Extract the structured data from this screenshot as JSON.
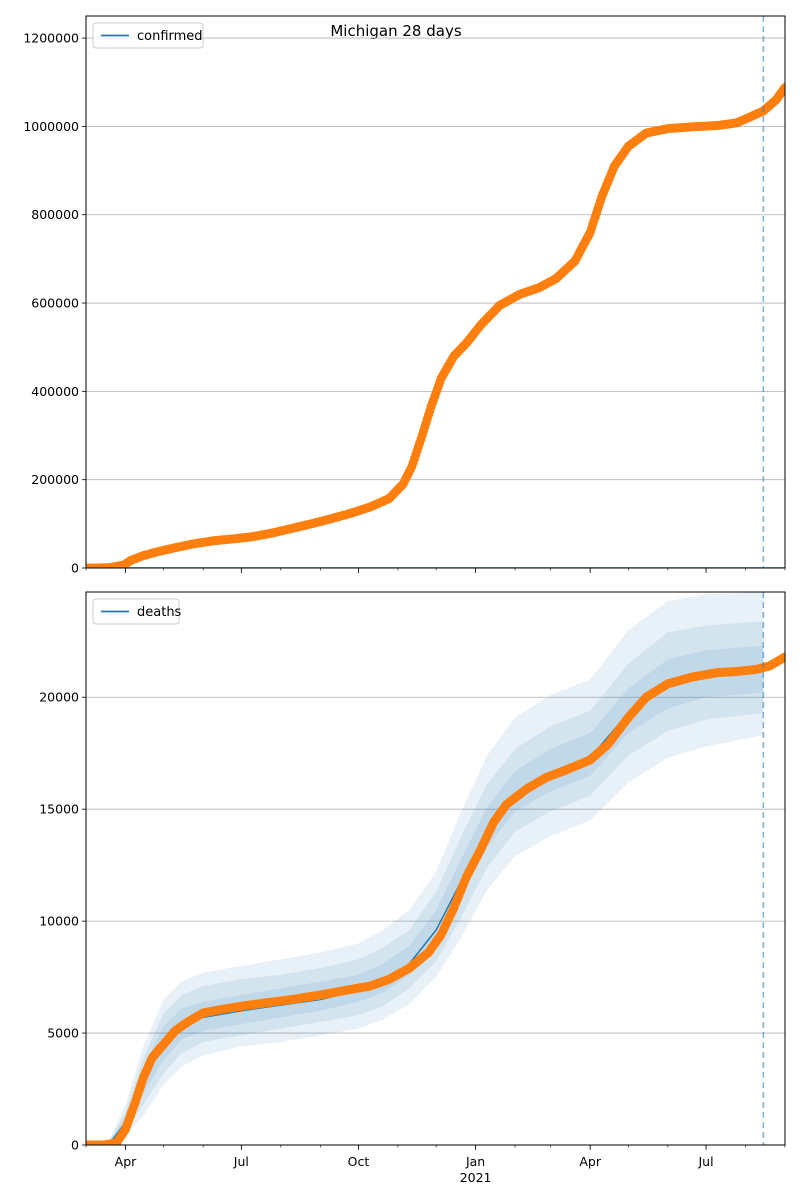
{
  "figure": {
    "title": "Michigan 28 days"
  },
  "chart_data": [
    {
      "type": "scatter",
      "legend": {
        "entries": [
          "confirmed"
        ],
        "position": "top-left"
      },
      "forecast_start": "2021-08-15",
      "xlim": [
        "2020-03-01",
        "2021-09-01"
      ],
      "ylim": [
        0,
        1250000
      ],
      "yticks": [
        0,
        200000,
        400000,
        600000,
        800000,
        1000000,
        1200000
      ],
      "xticks": [
        {
          "date": "2020-04-01",
          "label": "Apr",
          "sub": ""
        },
        {
          "date": "2020-07-01",
          "label": "Jul",
          "sub": ""
        },
        {
          "date": "2020-10-01",
          "label": "Oct",
          "sub": ""
        },
        {
          "date": "2021-01-01",
          "label": "Jan",
          "sub": "2021"
        },
        {
          "date": "2021-04-01",
          "label": "Apr",
          "sub": ""
        },
        {
          "date": "2021-07-01",
          "label": "Jul",
          "sub": ""
        }
      ],
      "grid_y": true,
      "show_xtick_labels": false,
      "series": [
        {
          "name": "confirmed",
          "kind": "line",
          "color": "#1f77b4",
          "points": [
            [
              "2020-03-01",
              0
            ],
            [
              "2021-09-01",
              0
            ]
          ]
        },
        {
          "kind": "points",
          "color": "#ff7f0e",
          "points": [
            [
              "2020-03-01",
              0
            ],
            [
              "2020-03-10",
              0
            ],
            [
              "2020-03-20",
              1000
            ],
            [
              "2020-03-31",
              7000
            ],
            [
              "2020-04-05",
              17000
            ],
            [
              "2020-04-15",
              28000
            ],
            [
              "2020-04-25",
              36000
            ],
            [
              "2020-05-10",
              46000
            ],
            [
              "2020-05-25",
              55000
            ],
            [
              "2020-06-10",
              62000
            ],
            [
              "2020-06-25",
              66000
            ],
            [
              "2020-07-10",
              71000
            ],
            [
              "2020-07-25",
              79000
            ],
            [
              "2020-08-10",
              90000
            ],
            [
              "2020-08-25",
              100000
            ],
            [
              "2020-09-10",
              112000
            ],
            [
              "2020-09-25",
              124000
            ],
            [
              "2020-10-10",
              138000
            ],
            [
              "2020-10-25",
              157000
            ],
            [
              "2020-11-05",
              190000
            ],
            [
              "2020-11-12",
              230000
            ],
            [
              "2020-11-20",
              300000
            ],
            [
              "2020-11-27",
              365000
            ],
            [
              "2020-12-05",
              430000
            ],
            [
              "2020-12-15",
              480000
            ],
            [
              "2020-12-25",
              510000
            ],
            [
              "2021-01-05",
              550000
            ],
            [
              "2021-01-20",
              595000
            ],
            [
              "2021-02-05",
              620000
            ],
            [
              "2021-02-20",
              635000
            ],
            [
              "2021-03-05",
              655000
            ],
            [
              "2021-03-20",
              695000
            ],
            [
              "2021-04-01",
              760000
            ],
            [
              "2021-04-10",
              840000
            ],
            [
              "2021-04-20",
              910000
            ],
            [
              "2021-05-01",
              955000
            ],
            [
              "2021-05-15",
              985000
            ],
            [
              "2021-06-01",
              995000
            ],
            [
              "2021-06-20",
              999000
            ],
            [
              "2021-07-10",
              1002000
            ],
            [
              "2021-07-25",
              1008000
            ],
            [
              "2021-08-05",
              1022000
            ],
            [
              "2021-08-15",
              1035000
            ],
            [
              "2021-08-25",
              1060000
            ],
            [
              "2021-09-01",
              1088000
            ]
          ]
        }
      ]
    },
    {
      "type": "scatter",
      "legend": {
        "entries": [
          "deaths"
        ],
        "position": "top-left"
      },
      "forecast_start": "2021-08-15",
      "xlim": [
        "2020-03-01",
        "2021-09-01"
      ],
      "ylim": [
        0,
        24700
      ],
      "yticks": [
        0,
        5000,
        10000,
        15000,
        20000
      ],
      "xticks": [
        {
          "date": "2020-04-01",
          "label": "Apr",
          "sub": ""
        },
        {
          "date": "2020-07-01",
          "label": "Jul",
          "sub": ""
        },
        {
          "date": "2020-10-01",
          "label": "Oct",
          "sub": ""
        },
        {
          "date": "2021-01-01",
          "label": "Jan",
          "sub": "2021"
        },
        {
          "date": "2021-04-01",
          "label": "Apr",
          "sub": ""
        },
        {
          "date": "2021-07-01",
          "label": "Jul",
          "sub": ""
        }
      ],
      "grid_y": true,
      "show_xtick_labels": true,
      "bands": {
        "color": "#1f77b4",
        "dates": [
          "2020-03-20",
          "2020-04-01",
          "2020-04-15",
          "2020-05-01",
          "2020-05-15",
          "2020-06-01",
          "2020-07-01",
          "2020-08-01",
          "2020-09-01",
          "2020-10-01",
          "2020-10-20",
          "2020-11-10",
          "2020-12-01",
          "2020-12-20",
          "2021-01-10",
          "2021-02-01",
          "2021-03-01",
          "2021-04-01",
          "2021-05-01",
          "2021-06-01",
          "2021-07-01",
          "2021-08-15"
        ],
        "median": [
          100,
          1000,
          2900,
          4500,
          5300,
          5700,
          6000,
          6250,
          6500,
          6900,
          7300,
          8100,
          9600,
          11700,
          14000,
          15600,
          16600,
          17300,
          19300,
          20500,
          21000,
          21200
        ],
        "levels": [
          {
            "opacity": 0.1,
            "lower": [
              0,
              400,
              1300,
              2700,
              3500,
              4000,
              4400,
              4600,
              4900,
              5200,
              5600,
              6300,
              7500,
              9200,
              11400,
              12900,
              13800,
              14500,
              16200,
              17300,
              17800,
              18300
            ],
            "upper": [
              300,
              1800,
              4400,
              6500,
              7300,
              7700,
              8000,
              8300,
              8600,
              9000,
              9600,
              10500,
              12200,
              14800,
              17400,
              19100,
              20100,
              20800,
              23000,
              24300,
              24600,
              24700
            ]
          },
          {
            "opacity": 0.1,
            "lower": [
              0,
              600,
              1800,
              3200,
              4100,
              4600,
              4900,
              5200,
              5500,
              5800,
              6200,
              7000,
              8200,
              10100,
              12400,
              14000,
              14900,
              15600,
              17400,
              18500,
              19000,
              19300
            ],
            "upper": [
              250,
              1500,
              3900,
              5900,
              6700,
              7100,
              7400,
              7600,
              7900,
              8300,
              8800,
              9600,
              11300,
              13700,
              16100,
              17700,
              18700,
              19400,
              21500,
              22900,
              23200,
              23400
            ]
          },
          {
            "opacity": 0.1,
            "lower": [
              0,
              800,
              2300,
              3800,
              4700,
              5100,
              5400,
              5700,
              6000,
              6400,
              6800,
              7600,
              9000,
              11000,
              13300,
              14900,
              15800,
              16500,
              18400,
              19500,
              20000,
              20200
            ],
            "upper": [
              200,
              1250,
              3500,
              5300,
              6100,
              6400,
              6700,
              7000,
              7300,
              7600,
              8100,
              8900,
              10500,
              12700,
              15100,
              16700,
              17700,
              18400,
              20400,
              21700,
              22100,
              22300
            ]
          }
        ]
      },
      "series": [
        {
          "name": "deaths",
          "kind": "line",
          "color": "#1f77b4",
          "points": [
            [
              "2020-03-01",
              0
            ],
            [
              "2020-03-20",
              100
            ],
            [
              "2020-04-01",
              1000
            ],
            [
              "2020-04-15",
              2900
            ],
            [
              "2020-05-01",
              4500
            ],
            [
              "2020-05-15",
              5300
            ],
            [
              "2020-06-01",
              5700
            ],
            [
              "2020-07-01",
              6000
            ],
            [
              "2020-08-01",
              6250
            ],
            [
              "2020-09-01",
              6500
            ],
            [
              "2020-10-01",
              6900
            ],
            [
              "2020-10-20",
              7300
            ],
            [
              "2020-11-10",
              8100
            ],
            [
              "2020-12-01",
              9600
            ],
            [
              "2020-12-20",
              11700
            ],
            [
              "2021-01-10",
              14000
            ],
            [
              "2021-02-01",
              15600
            ],
            [
              "2021-03-01",
              16600
            ],
            [
              "2021-04-01",
              17300
            ],
            [
              "2021-05-01",
              19300
            ],
            [
              "2021-06-01",
              20500
            ],
            [
              "2021-07-01",
              21000
            ],
            [
              "2021-08-15",
              21200
            ]
          ]
        },
        {
          "kind": "points",
          "color": "#ff7f0e",
          "points": [
            [
              "2020-03-01",
              0
            ],
            [
              "2020-03-15",
              0
            ],
            [
              "2020-03-25",
              100
            ],
            [
              "2020-04-01",
              700
            ],
            [
              "2020-04-08",
              1800
            ],
            [
              "2020-04-15",
              3000
            ],
            [
              "2020-04-22",
              3900
            ],
            [
              "2020-05-01",
              4500
            ],
            [
              "2020-05-10",
              5100
            ],
            [
              "2020-05-20",
              5500
            ],
            [
              "2020-06-01",
              5900
            ],
            [
              "2020-06-15",
              6050
            ],
            [
              "2020-07-01",
              6200
            ],
            [
              "2020-07-20",
              6350
            ],
            [
              "2020-08-10",
              6500
            ],
            [
              "2020-09-01",
              6700
            ],
            [
              "2020-09-20",
              6900
            ],
            [
              "2020-10-10",
              7100
            ],
            [
              "2020-10-25",
              7400
            ],
            [
              "2020-11-10",
              7900
            ],
            [
              "2020-11-25",
              8600
            ],
            [
              "2020-12-05",
              9400
            ],
            [
              "2020-12-15",
              10600
            ],
            [
              "2020-12-25",
              12000
            ],
            [
              "2021-01-05",
              13200
            ],
            [
              "2021-01-15",
              14400
            ],
            [
              "2021-01-25",
              15200
            ],
            [
              "2021-02-10",
              15900
            ],
            [
              "2021-02-25",
              16400
            ],
            [
              "2021-03-15",
              16800
            ],
            [
              "2021-04-01",
              17200
            ],
            [
              "2021-04-15",
              17900
            ],
            [
              "2021-05-01",
              19100
            ],
            [
              "2021-05-15",
              20000
            ],
            [
              "2021-06-01",
              20600
            ],
            [
              "2021-06-20",
              20900
            ],
            [
              "2021-07-10",
              21100
            ],
            [
              "2021-07-25",
              21150
            ],
            [
              "2021-08-10",
              21250
            ],
            [
              "2021-08-20",
              21400
            ],
            [
              "2021-09-01",
              21800
            ]
          ]
        }
      ]
    }
  ]
}
